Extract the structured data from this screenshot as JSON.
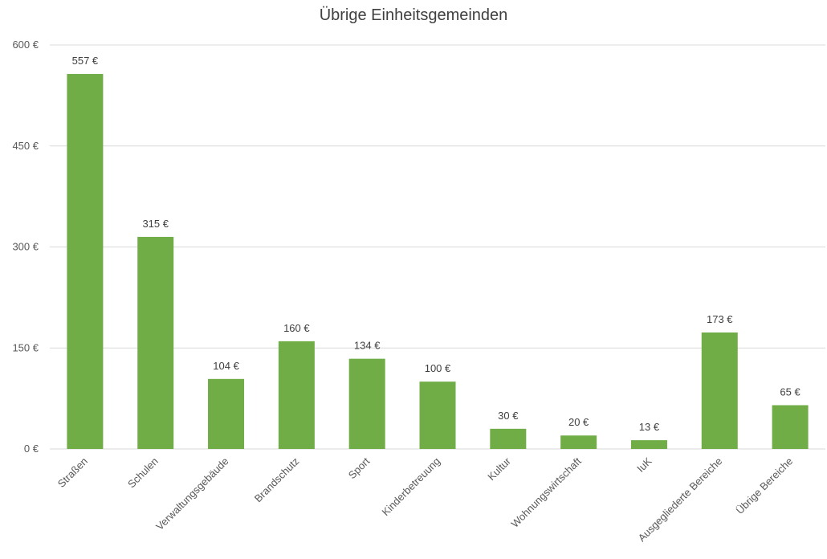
{
  "chart_data": {
    "type": "bar",
    "title": "Übrige Einheitsgemeinden",
    "categories": [
      "Straßen",
      "Schulen",
      "Verwaltungsgebäude",
      "Brandschutz",
      "Sport",
      "Kinderbetreuung",
      "Kultur",
      "Wohnungswirtschaft",
      "IuK",
      "Ausgegliederte Bereiche",
      "Übrige Bereiche"
    ],
    "values": [
      557,
      315,
      104,
      160,
      134,
      100,
      30,
      20,
      13,
      173,
      65
    ],
    "data_labels": [
      "557 €",
      "315 €",
      "104 €",
      "160 €",
      "134 €",
      "100 €",
      "30 €",
      "20 €",
      "13 €",
      "173 €",
      "65 €"
    ],
    "y_ticks": [
      0,
      150,
      300,
      450,
      600
    ],
    "y_tick_labels": [
      "0 €",
      "150 €",
      "300 €",
      "450 €",
      "600 €"
    ],
    "ylim": [
      0,
      600
    ],
    "xlabel": "",
    "ylabel": "",
    "grid": true,
    "legend": "none",
    "bar_color": "#70ad47",
    "grid_color": "#d9d9d9"
  }
}
